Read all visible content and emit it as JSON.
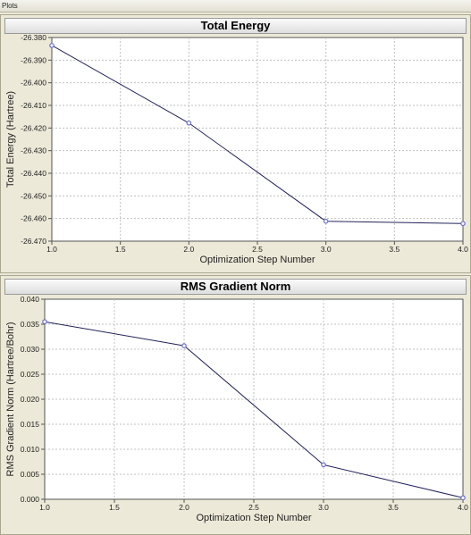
{
  "window": {
    "title": "Plots"
  },
  "chart_data": [
    {
      "type": "line",
      "title": "Total Energy",
      "xlabel": "Optimization Step Number",
      "ylabel": "Total Energy (Hartree)",
      "x": [
        1.0,
        2.0,
        3.0,
        4.0
      ],
      "series": [
        {
          "values": [
            -26.3835,
            -26.4178,
            -26.4612,
            -26.4622
          ]
        }
      ],
      "xlim": [
        1.0,
        4.0
      ],
      "ylim": [
        -26.47,
        -26.38
      ],
      "xticks": [
        "1.0",
        "1.5",
        "2.0",
        "2.5",
        "3.0",
        "3.5",
        "4.0"
      ],
      "yticks": [
        "-26.380",
        "-26.390",
        "-26.400",
        "-26.410",
        "-26.420",
        "-26.430",
        "-26.440",
        "-26.450",
        "-26.460",
        "-26.470"
      ],
      "grid": true,
      "colors": {
        "line": "#23235a",
        "marker": "#6a6ad0",
        "background": "#ffffff",
        "grid": "#c0c0c0"
      }
    },
    {
      "type": "line",
      "title": "RMS Gradient Norm",
      "xlabel": "Optimization Step Number",
      "ylabel": "RMS Gradient Norm (Hartree/Bohr)",
      "x": [
        1.0,
        2.0,
        3.0,
        4.0
      ],
      "series": [
        {
          "values": [
            0.0355,
            0.0307,
            0.0069,
            0.0003
          ]
        }
      ],
      "xlim": [
        1.0,
        4.0
      ],
      "ylim": [
        0.0,
        0.04
      ],
      "xticks": [
        "1.0",
        "1.5",
        "2.0",
        "2.5",
        "3.0",
        "3.5",
        "4.0"
      ],
      "yticks": [
        "0.040",
        "0.035",
        "0.030",
        "0.025",
        "0.020",
        "0.015",
        "0.010",
        "0.005",
        "0.000"
      ],
      "grid": true,
      "colors": {
        "line": "#23235a",
        "marker": "#6a6ad0",
        "background": "#ffffff",
        "grid": "#c0c0c0"
      }
    }
  ]
}
